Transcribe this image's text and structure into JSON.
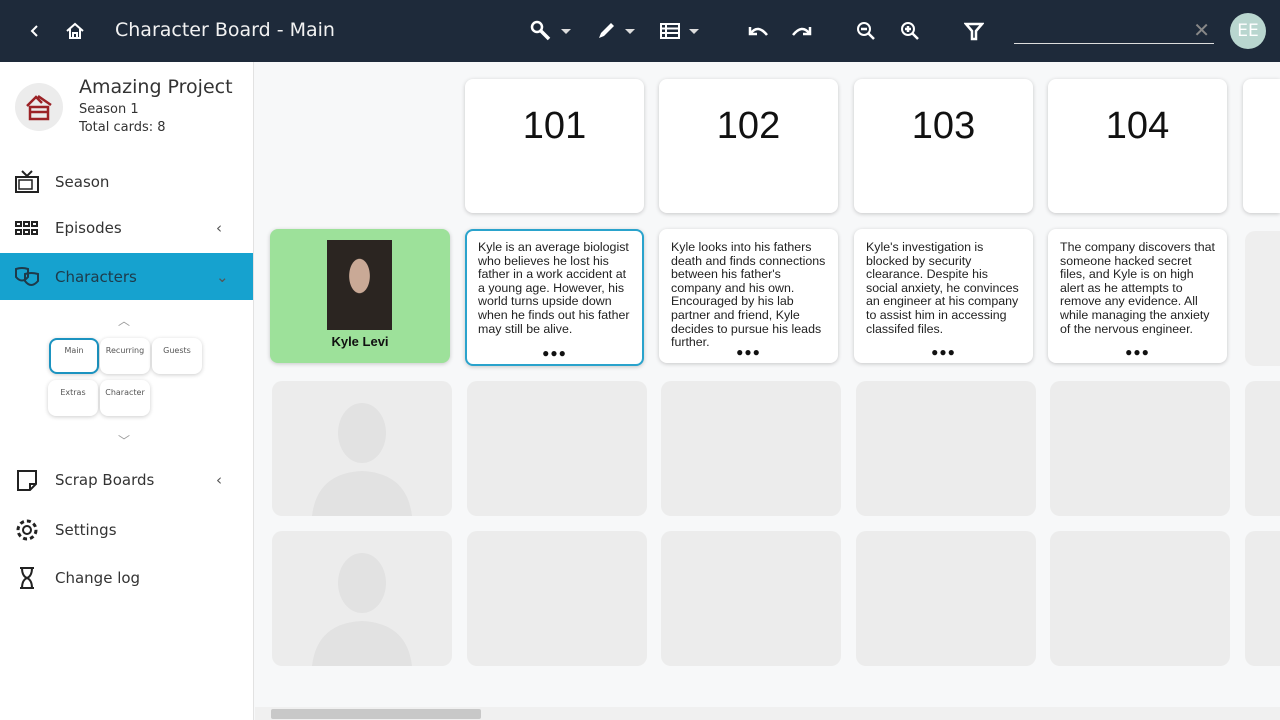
{
  "header": {
    "title": "Character Board - Main",
    "avatar_initials": "EE",
    "search": {
      "value": "",
      "placeholder": ""
    },
    "clear_label": "✕",
    "icons": [
      "back-icon",
      "home-icon",
      "wrench-icon",
      "pencil-icon",
      "list-icon",
      "undo-icon",
      "redo-icon",
      "zoom-out-icon",
      "zoom-in-icon",
      "filter-icon"
    ]
  },
  "project": {
    "name": "Amazing Project",
    "season": "Season 1",
    "total": "Total cards: 8"
  },
  "sidebar": {
    "items": [
      {
        "label": "Season",
        "icon": "tv-icon"
      },
      {
        "label": "Episodes",
        "icon": "grid-icon"
      },
      {
        "label": "Characters",
        "icon": "masks-icon",
        "active": true
      },
      {
        "label": "Scrap Boards",
        "icon": "note-icon"
      },
      {
        "label": "Settings",
        "icon": "gear-icon"
      },
      {
        "label": "Change log",
        "icon": "hourglass-icon"
      }
    ],
    "groups": [
      "Main",
      "Recurring",
      "Guests",
      "Extras",
      "Character"
    ],
    "active_color": "#16a2cf"
  },
  "board": {
    "episodes": [
      "101",
      "102",
      "103",
      "104"
    ],
    "character": {
      "name": "Kyle Levi",
      "color": "#9de19a"
    },
    "summaries": [
      "Kyle is an average biologist who believes he lost his father in a work accident at a young age. However, his world turns upside down when he finds out his father may still be alive.",
      "Kyle looks into his fathers death and finds connections between his father's company and his own. Encouraged by his lab partner and friend, Kyle decides to pursue his leads further.",
      "Kyle's investigation is blocked by security clearance. Despite his social anxiety, he convinces an engineer at his company to assist him in accessing classifed files.",
      "The company discovers that someone hacked secret files, and Kyle is on high alert as he attempts to remove any evidence. All while managing the anxiety of the nervous engineer."
    ],
    "more_label": "●●●"
  }
}
